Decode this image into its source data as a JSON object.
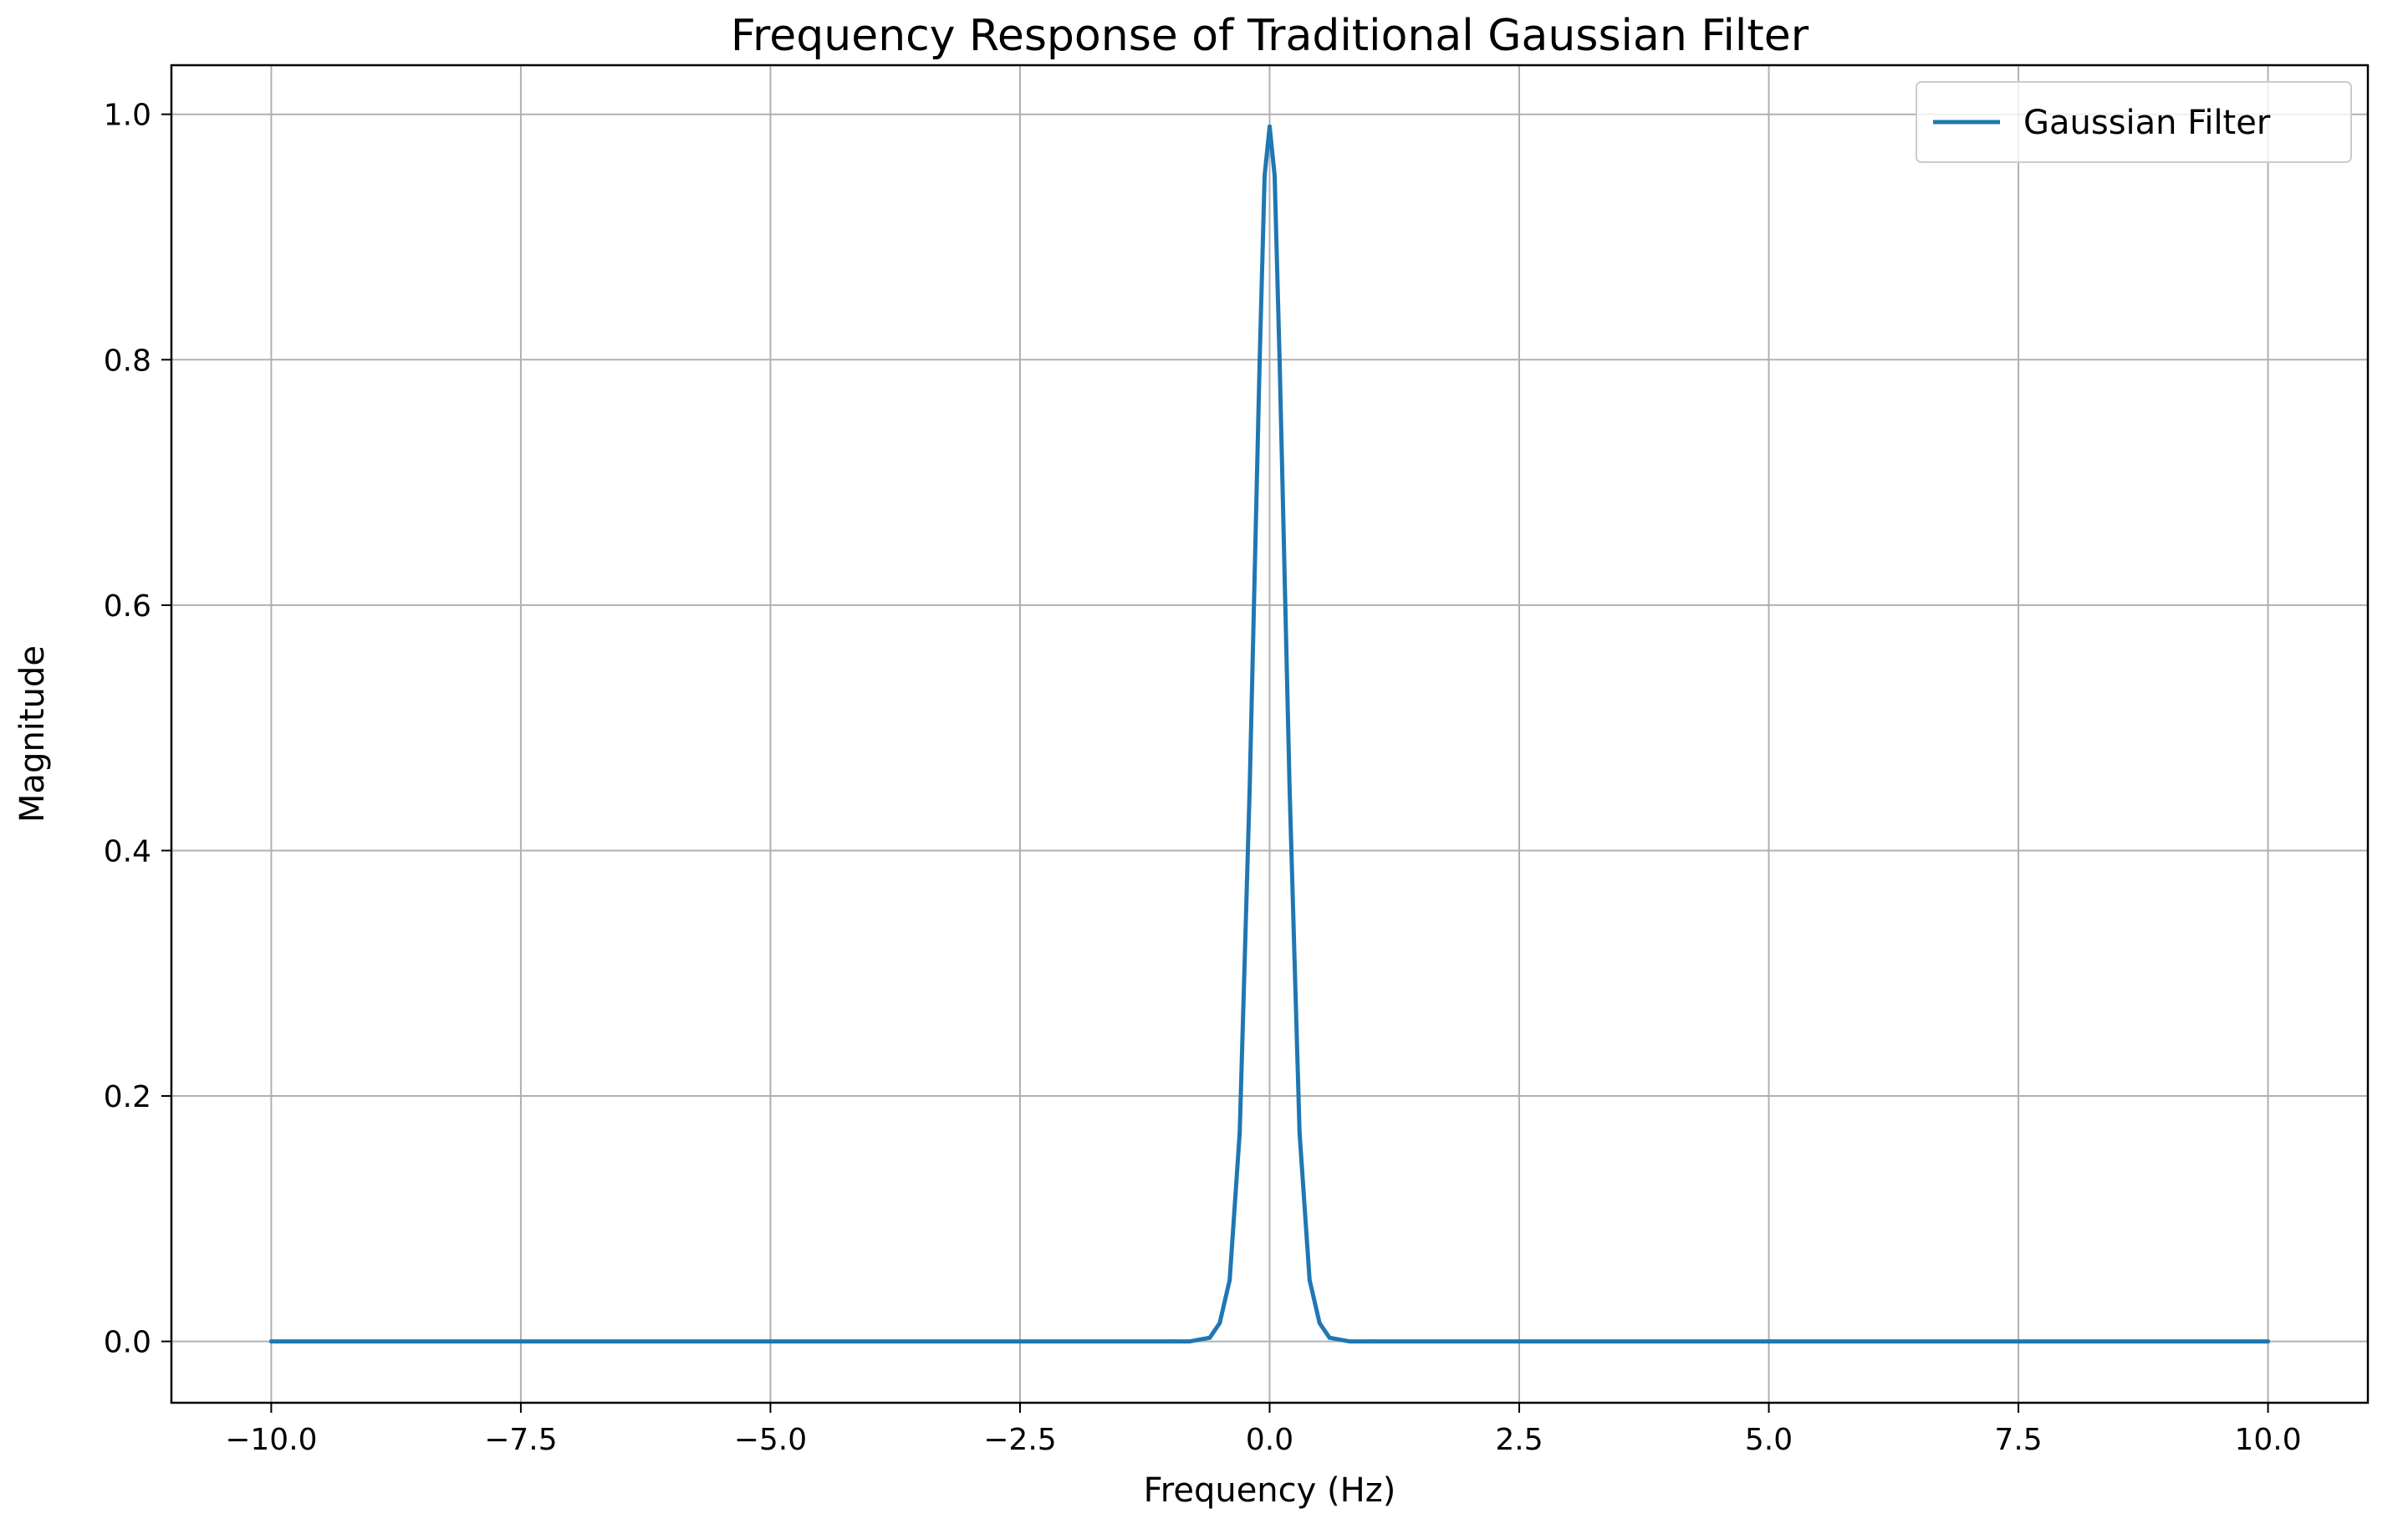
{
  "chart_data": {
    "type": "line",
    "title": "Frequency Response of Traditional Gaussian Filter",
    "xlabel": "Frequency (Hz)",
    "ylabel": "Magnitude",
    "xlim": [
      -11,
      11
    ],
    "ylim": [
      -0.05,
      1.04
    ],
    "xticks": [
      -10.0,
      -7.5,
      -5.0,
      -2.5,
      0.0,
      2.5,
      5.0,
      7.5,
      10.0
    ],
    "xtick_labels": [
      "−10.0",
      "−7.5",
      "−5.0",
      "−2.5",
      "0.0",
      "2.5",
      "5.0",
      "7.5",
      "10.0"
    ],
    "yticks": [
      0.0,
      0.2,
      0.4,
      0.6,
      0.8,
      1.0
    ],
    "ytick_labels": [
      "0.0",
      "0.2",
      "0.4",
      "0.6",
      "0.8",
      "1.0"
    ],
    "grid": true,
    "legend_position": "top-right",
    "series": [
      {
        "name": "Gaussian Filter",
        "color": "#1f77b4",
        "x": [
          -10.0,
          -7.5,
          -5.0,
          -2.5,
          -1.0,
          -0.8,
          -0.6,
          -0.5,
          -0.4,
          -0.3,
          -0.2,
          -0.1,
          -0.05,
          0.0,
          0.05,
          0.1,
          0.2,
          0.3,
          0.4,
          0.5,
          0.6,
          0.8,
          1.0,
          2.5,
          5.0,
          7.5,
          10.0
        ],
        "y": [
          0.0,
          0.0,
          0.0,
          0.0,
          0.0,
          0.0,
          0.003,
          0.015,
          0.05,
          0.17,
          0.45,
          0.8,
          0.95,
          0.99,
          0.95,
          0.8,
          0.45,
          0.17,
          0.05,
          0.015,
          0.003,
          0.0,
          0.0,
          0.0,
          0.0,
          0.0,
          0.0
        ]
      }
    ]
  }
}
